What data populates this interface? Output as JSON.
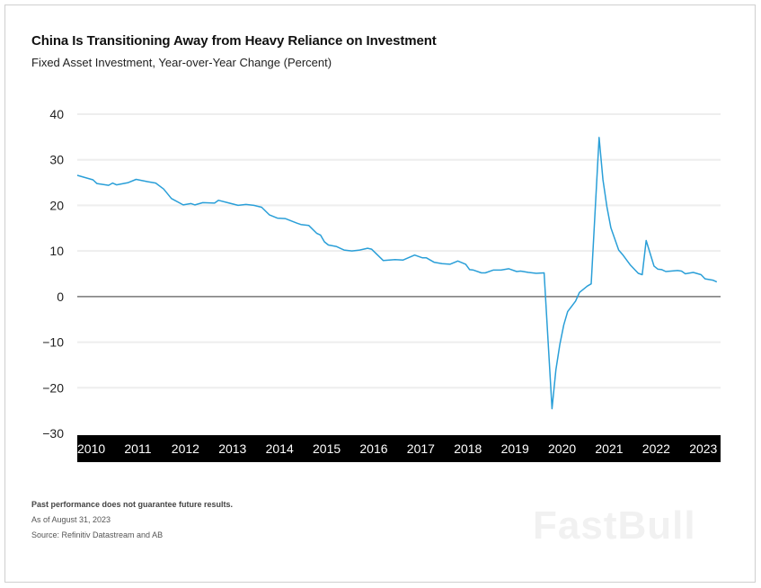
{
  "title": "China Is Transitioning Away from Heavy Reliance on Investment",
  "subtitle": "Fixed Asset Investment, Year-over-Year Change (Percent)",
  "footer": {
    "disclaimer": "Past performance does not guarantee future results.",
    "as_of": "As of August 31, 2023",
    "source": "Source: Refinitiv Datastream and AB"
  },
  "watermark": "FastBull",
  "colors": {
    "line": "#2a9fd8",
    "axis_band": "#000000",
    "zero_line": "#777777",
    "grid": "#eeeeee"
  },
  "chart_data": {
    "type": "line",
    "title": "China Is Transitioning Away from Heavy Reliance on Investment",
    "subtitle": "Fixed Asset Investment, Year-over-Year Change (Percent)",
    "ylim": [
      -30,
      40
    ],
    "yticks": [
      40,
      30,
      20,
      10,
      0,
      -10,
      -20,
      -30
    ],
    "ytick_labels": [
      "40",
      "30",
      "20",
      "10",
      "0",
      "−10",
      "−20",
      "−30"
    ],
    "xticks": [
      "2010",
      "2011",
      "2012",
      "2013",
      "2014",
      "2015",
      "2016",
      "2017",
      "2018",
      "2019",
      "2020",
      "2021",
      "2022",
      "2023"
    ],
    "grid": true,
    "series": [
      {
        "x": [
          "2010-01",
          "2010-05",
          "2010-06",
          "2010-09",
          "2010-10",
          "2010-11",
          "2011-02",
          "2011-04",
          "2011-07",
          "2011-09",
          "2011-11",
          "2012-01",
          "2012-04",
          "2012-06",
          "2012-07",
          "2012-09",
          "2012-12",
          "2013-01",
          "2013-06",
          "2013-08",
          "2013-10",
          "2013-12",
          "2014-02",
          "2014-04",
          "2014-06",
          "2014-09",
          "2014-10",
          "2014-12",
          "2015-02",
          "2015-03",
          "2015-04",
          "2015-05",
          "2015-07",
          "2015-09",
          "2015-11",
          "2016-01",
          "2016-03",
          "2016-04",
          "2016-07",
          "2016-10",
          "2016-12",
          "2017-03",
          "2017-05",
          "2017-06",
          "2017-08",
          "2017-10",
          "2017-12",
          "2018-02",
          "2018-04",
          "2018-05",
          "2018-06",
          "2018-08",
          "2018-09",
          "2018-11",
          "2019-01",
          "2019-03",
          "2019-05",
          "2019-06",
          "2019-08",
          "2019-10",
          "2019-12",
          "2020-02",
          "2020-03",
          "2020-04",
          "2020-05",
          "2020-06",
          "2020-08",
          "2020-09",
          "2020-11",
          "2020-12",
          "2021-02",
          "2021-03",
          "2021-04",
          "2021-05",
          "2021-07",
          "2021-08",
          "2021-10",
          "2021-12",
          "2022-01",
          "2022-02",
          "2022-04",
          "2022-05",
          "2022-06",
          "2022-07",
          "2022-10",
          "2022-11",
          "2022-12",
          "2023-02",
          "2023-04",
          "2023-05",
          "2023-07",
          "2023-08"
        ],
        "y": [
          26.6,
          25.6,
          24.8,
          24.4,
          24.9,
          24.5,
          25.0,
          25.7,
          25.2,
          24.9,
          23.6,
          21.5,
          20.1,
          20.4,
          20.1,
          20.6,
          20.5,
          21.1,
          20.0,
          20.2,
          20.0,
          19.6,
          17.9,
          17.2,
          17.1,
          16.1,
          15.8,
          15.6,
          13.9,
          13.5,
          12.0,
          11.3,
          11.0,
          10.2,
          10.0,
          10.2,
          10.6,
          10.4,
          7.9,
          8.1,
          8.0,
          9.1,
          8.5,
          8.5,
          7.5,
          7.2,
          7.1,
          7.8,
          7.1,
          5.9,
          5.8,
          5.2,
          5.2,
          5.8,
          5.8,
          6.1,
          5.5,
          5.6,
          5.3,
          5.1,
          5.2,
          -24.6,
          -16.1,
          -10.5,
          -6.2,
          -3.3,
          -1.0,
          0.9,
          2.3,
          2.8,
          34.9,
          25.6,
          19.7,
          15.1,
          10.2,
          9.2,
          6.9,
          5.1,
          4.8,
          12.3,
          6.7,
          6.0,
          5.9,
          5.5,
          5.7,
          5.6,
          5.0,
          5.3,
          4.8,
          3.9,
          3.6,
          3.2
        ]
      }
    ]
  }
}
